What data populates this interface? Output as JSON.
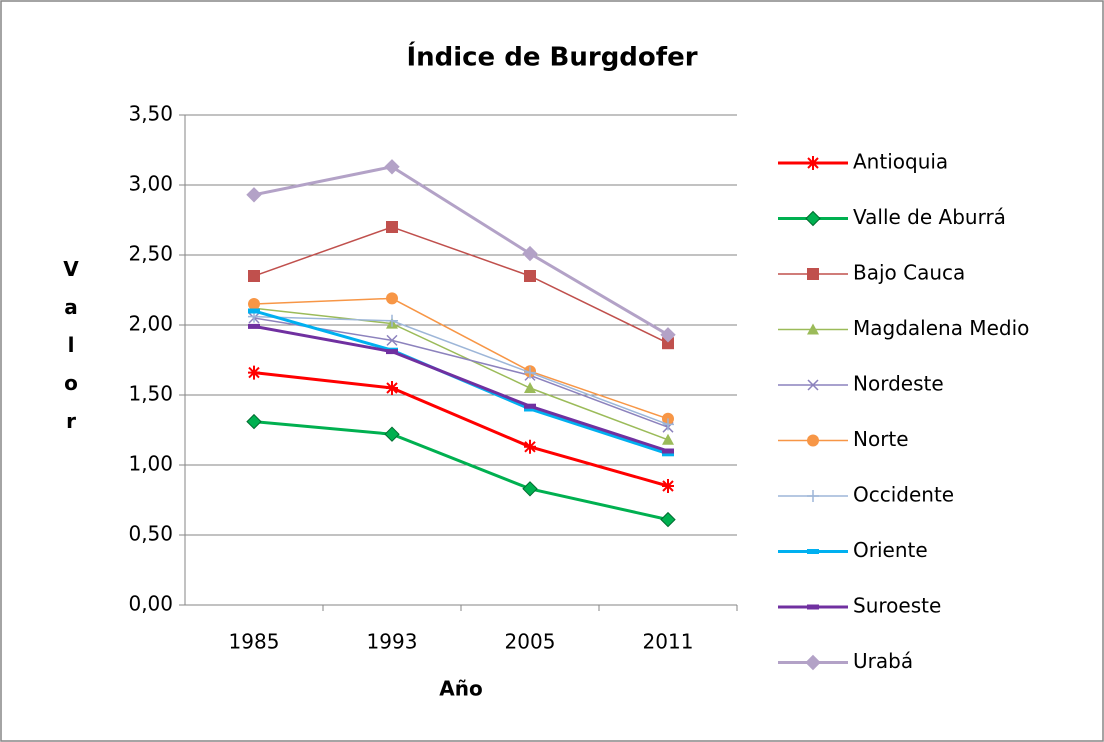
{
  "chart_data": {
    "type": "line",
    "title": "Índice de Burgdofer",
    "x_label": "Año",
    "y_label": "Valor",
    "categories": [
      "1985",
      "1993",
      "2005",
      "2011"
    ],
    "ylim": [
      0,
      3.5
    ],
    "yticks": [
      {
        "value": 0,
        "label": "0,00"
      },
      {
        "value": 0.5,
        "label": "0,50"
      },
      {
        "value": 1,
        "label": "1,00"
      },
      {
        "value": 1.5,
        "label": "1,50"
      },
      {
        "value": 2,
        "label": "2,00"
      },
      {
        "value": 2.5,
        "label": "2,50"
      },
      {
        "value": 3,
        "label": "3,00"
      },
      {
        "value": 3.5,
        "label": "3,50"
      }
    ],
    "grid": true,
    "legend": "right",
    "series": [
      {
        "name": "Antioquia",
        "color": "#ff0000",
        "marker": "star",
        "values": [
          1.66,
          1.55,
          1.13,
          0.85
        ]
      },
      {
        "name": "Valle de Aburrá",
        "color": "#00b050",
        "marker": "diamond",
        "values": [
          1.31,
          1.22,
          0.83,
          0.61
        ]
      },
      {
        "name": "Bajo Cauca",
        "color": "#c0504d",
        "marker": "square",
        "values": [
          2.35,
          2.7,
          2.35,
          1.87
        ]
      },
      {
        "name": "Magdalena Medio",
        "color": "#9bbb59",
        "marker": "triangle",
        "values": [
          2.12,
          2.01,
          1.55,
          1.18
        ]
      },
      {
        "name": "Nordeste",
        "color": "#8c82bd",
        "marker": "x",
        "values": [
          2.05,
          1.89,
          1.64,
          1.27
        ]
      },
      {
        "name": "Norte",
        "color": "#f79646",
        "marker": "circle",
        "values": [
          2.15,
          2.19,
          1.67,
          1.33
        ]
      },
      {
        "name": "Occidente",
        "color": "#9db6d8",
        "marker": "plus",
        "values": [
          2.06,
          2.03,
          1.66,
          1.29
        ]
      },
      {
        "name": "Oriente",
        "color": "#00b0f0",
        "marker": "dash",
        "values": [
          2.1,
          1.82,
          1.4,
          1.08
        ]
      },
      {
        "name": "Suroeste",
        "color": "#7030a0",
        "marker": "dash",
        "values": [
          1.99,
          1.81,
          1.42,
          1.1
        ]
      },
      {
        "name": "Urabá",
        "color": "#b3a2c7",
        "marker": "diamond",
        "values": [
          2.93,
          3.13,
          2.51,
          1.93
        ]
      }
    ]
  }
}
